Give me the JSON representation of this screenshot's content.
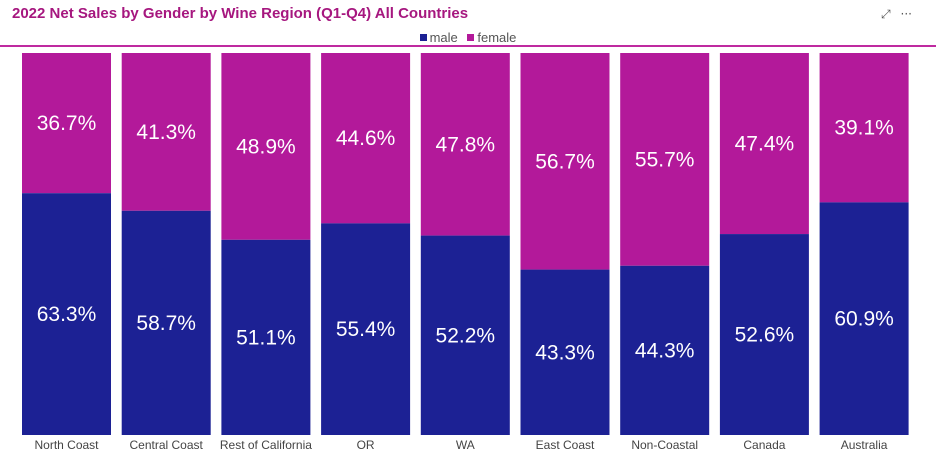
{
  "header": {
    "title": "2022 Net Sales by Gender by Wine Region (Q1-Q4) All Countries",
    "expand_icon": "expand-icon",
    "more_icon": "more-options-icon",
    "expand_glyph": "⤢",
    "more_glyph": "···"
  },
  "legend": {
    "items": [
      {
        "label": "male",
        "color": "#1c2194"
      },
      {
        "label": "female",
        "color": "#b3199a"
      }
    ]
  },
  "chart_data": {
    "type": "bar",
    "stacked": true,
    "normalized": true,
    "title": "2022 Net Sales by Gender by Wine Region (Q1-Q4) All Countries",
    "xlabel": "",
    "ylabel": "",
    "ylim": [
      0,
      100
    ],
    "grid": false,
    "legend_position": "top-center",
    "categories": [
      "North Coast",
      "Central Coast",
      "Rest of California",
      "OR",
      "WA",
      "East Coast",
      "Non-Coastal",
      "Canada",
      "Australia"
    ],
    "series": [
      {
        "name": "male",
        "color": "#1c2194",
        "values": [
          63.3,
          58.7,
          51.1,
          55.4,
          52.2,
          43.3,
          44.3,
          52.6,
          60.9
        ],
        "labels": [
          "63.3%",
          "58.7%",
          "51.1%",
          "55.4%",
          "52.2%",
          "43.3%",
          "44.3%",
          "52.6%",
          "60.9%"
        ]
      },
      {
        "name": "female",
        "color": "#b3199a",
        "values": [
          36.7,
          41.3,
          48.9,
          44.6,
          47.8,
          56.7,
          55.7,
          47.4,
          39.1
        ],
        "labels": [
          "36.7%",
          "41.3%",
          "48.9%",
          "44.6%",
          "47.8%",
          "56.7%",
          "55.7%",
          "47.4%",
          "39.1%"
        ]
      }
    ]
  }
}
